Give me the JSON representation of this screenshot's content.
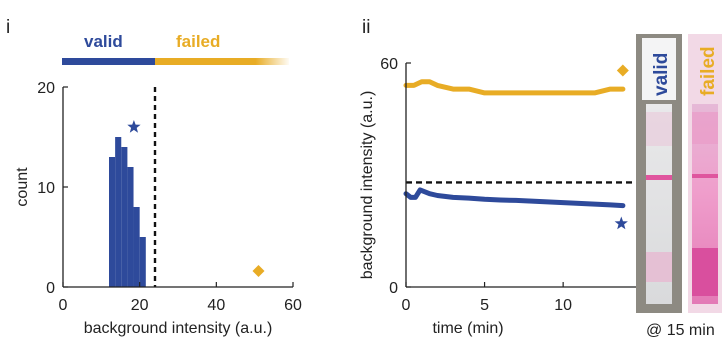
{
  "colors": {
    "valid": "#2e4a9b",
    "failed": "#e8ac25",
    "axis": "#222222"
  },
  "panel_i": {
    "label": "i"
  },
  "panel_ii": {
    "label": "ii"
  },
  "legend": {
    "valid": "valid",
    "failed": "failed"
  },
  "strips": {
    "valid": "valid",
    "failed": "failed",
    "caption": "@ 15 min"
  },
  "chart_data": [
    {
      "type": "bar",
      "panel": "i",
      "xlabel": "background intensity (a.u.)",
      "ylabel": "count",
      "xlim": [
        0,
        60
      ],
      "ylim": [
        0,
        20
      ],
      "xticks": [
        0,
        20,
        40,
        60
      ],
      "yticks": [
        0,
        10,
        20
      ],
      "bin_width": 1.6,
      "bins": [
        {
          "x": 12.0,
          "count": 13
        },
        {
          "x": 13.6,
          "count": 15
        },
        {
          "x": 15.2,
          "count": 14
        },
        {
          "x": 16.8,
          "count": 12
        },
        {
          "x": 18.4,
          "count": 8
        },
        {
          "x": 20.0,
          "count": 5
        }
      ],
      "threshold_x": 24,
      "markers": [
        {
          "shape": "star",
          "series": "valid",
          "x": 18.5,
          "y": 16
        },
        {
          "shape": "diamond",
          "series": "failed",
          "x": 51,
          "y": 1.6
        }
      ]
    },
    {
      "type": "line",
      "panel": "ii",
      "xlabel": "time (min)",
      "ylabel": "background intensity (a.u.)",
      "xlim": [
        0,
        14
      ],
      "ylim": [
        0,
        60
      ],
      "xticks": [
        0,
        5,
        10
      ],
      "yticks": [
        0,
        60
      ],
      "threshold_y": 28,
      "series": [
        {
          "color_key": "failed",
          "x": [
            0,
            0.5,
            1,
            1.5,
            2,
            3,
            4,
            5,
            6,
            7,
            8,
            9,
            10,
            11,
            12,
            13,
            13.8
          ],
          "y": [
            54,
            54,
            55,
            55,
            54,
            53,
            53,
            52,
            52,
            52,
            52,
            52,
            52,
            52,
            52,
            53,
            53
          ]
        },
        {
          "color_key": "valid",
          "x": [
            0,
            0.3,
            0.6,
            0.9,
            1.5,
            2,
            3,
            4,
            5,
            6,
            7,
            8,
            9,
            10,
            11,
            12,
            13,
            13.8
          ],
          "y": [
            25,
            24,
            24,
            26,
            25,
            24.5,
            24,
            23.8,
            23.5,
            23.3,
            23.2,
            23,
            22.8,
            22.6,
            22.4,
            22.2,
            22,
            21.8
          ]
        }
      ],
      "markers": [
        {
          "shape": "diamond",
          "series": "failed",
          "x": 13.8,
          "y": 58
        },
        {
          "shape": "star",
          "series": "valid",
          "x": 13.7,
          "y": 17
        }
      ]
    }
  ]
}
